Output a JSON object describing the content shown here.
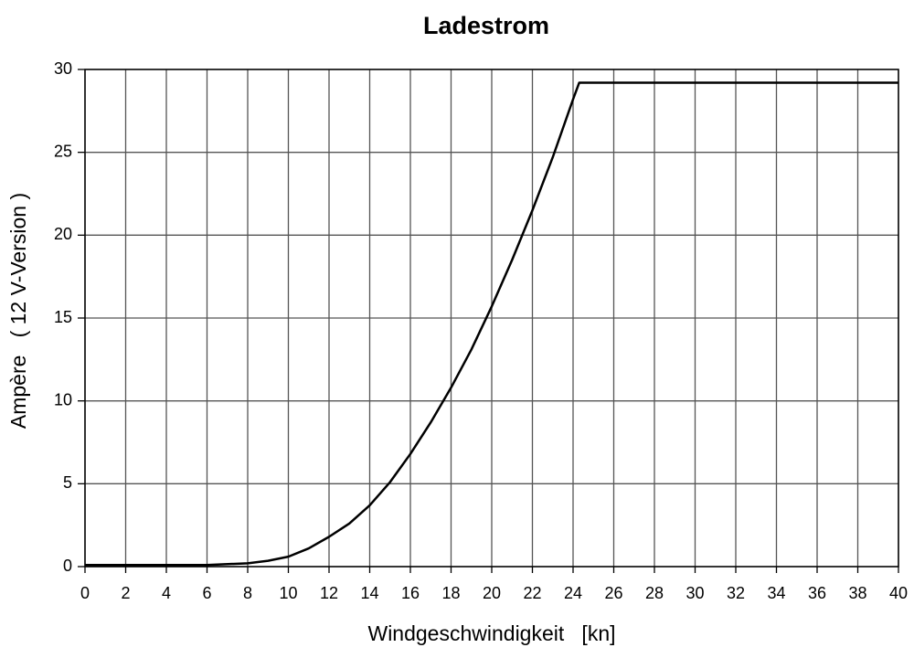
{
  "chart_data": {
    "type": "line",
    "title": "Ladestrom",
    "x_label": "Windgeschwindigkeit   [kn]",
    "y_label": "Ampère   ( 12 V-Version )",
    "x": [
      0,
      2,
      4,
      6,
      8,
      9,
      10,
      11,
      12,
      13,
      14,
      15,
      16,
      17,
      18,
      19,
      20,
      21,
      22,
      23,
      24,
      24.3,
      40
    ],
    "values": [
      0.1,
      0.1,
      0.1,
      0.1,
      0.2,
      0.35,
      0.6,
      1.1,
      1.8,
      2.6,
      3.7,
      5.1,
      6.8,
      8.7,
      10.8,
      13.1,
      15.7,
      18.5,
      21.5,
      24.7,
      28.2,
      29.2,
      29.2
    ],
    "color": "#000000",
    "xlim": [
      0,
      40
    ],
    "xticks": [
      0,
      2,
      4,
      6,
      8,
      10,
      12,
      14,
      16,
      18,
      20,
      22,
      24,
      26,
      28,
      30,
      32,
      34,
      36,
      38,
      40
    ],
    "ylim": [
      0,
      30
    ],
    "yticks": [
      0,
      5,
      10,
      15,
      20,
      25,
      30
    ],
    "grid": true
  }
}
